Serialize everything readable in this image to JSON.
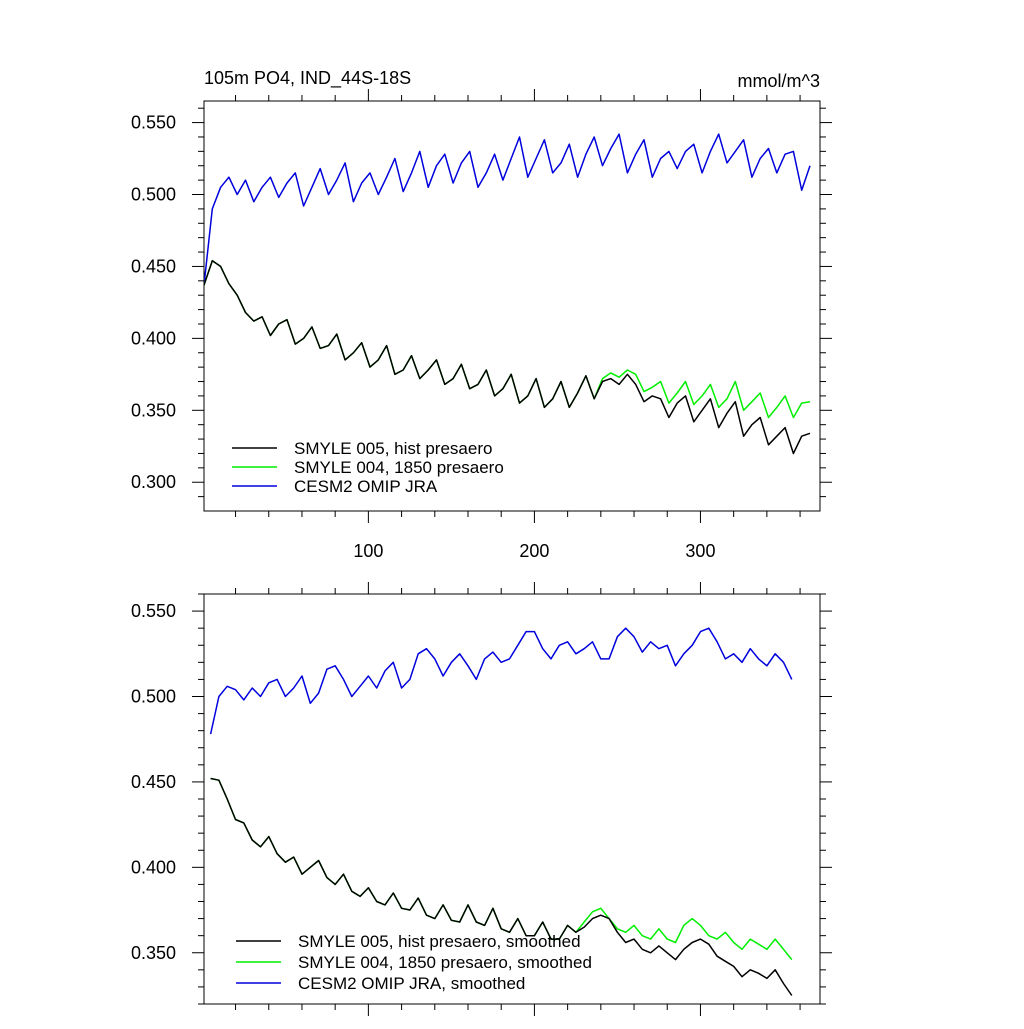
{
  "figure": {
    "title_left": "105m PO4, IND_44S-18S",
    "title_right": "mmol/m^3"
  },
  "chart_data": [
    {
      "type": "line",
      "panel": "top",
      "title": "105m PO4, IND_44S-18S",
      "units": "mmol/m^3",
      "xlabel": "",
      "ylabel": "",
      "xlim": [
        1,
        372
      ],
      "ylim": [
        0.28,
        0.565
      ],
      "xticks": [
        100,
        200,
        300
      ],
      "xtick_labels": [
        "100",
        "200",
        "300"
      ],
      "yticks": [
        0.3,
        0.35,
        0.4,
        0.45,
        0.5,
        0.55
      ],
      "ytick_labels": [
        "0.300",
        "0.350",
        "0.400",
        "0.450",
        "0.500",
        "0.550"
      ],
      "grid": false,
      "legend_position": "bottom-left",
      "series": [
        {
          "name": "SMYLE 005, hist presaero",
          "color": "#000000",
          "x_start": 1,
          "x_step": 5,
          "values": [
            0.437,
            0.454,
            0.45,
            0.438,
            0.43,
            0.418,
            0.412,
            0.415,
            0.402,
            0.41,
            0.413,
            0.396,
            0.4,
            0.408,
            0.393,
            0.395,
            0.403,
            0.385,
            0.39,
            0.397,
            0.38,
            0.385,
            0.395,
            0.375,
            0.378,
            0.388,
            0.372,
            0.378,
            0.385,
            0.368,
            0.372,
            0.382,
            0.365,
            0.368,
            0.378,
            0.36,
            0.365,
            0.375,
            0.355,
            0.36,
            0.372,
            0.352,
            0.358,
            0.37,
            0.352,
            0.362,
            0.374,
            0.358,
            0.37,
            0.372,
            0.368,
            0.375,
            0.368,
            0.356,
            0.36,
            0.358,
            0.345,
            0.355,
            0.36,
            0.342,
            0.35,
            0.358,
            0.338,
            0.348,
            0.356,
            0.332,
            0.34,
            0.345,
            0.326,
            0.332,
            0.338,
            0.32,
            0.332,
            0.334
          ]
        },
        {
          "name": "SMYLE 004, 1850 presaero",
          "color": "#00ee00",
          "x_start": 1,
          "x_step": 5,
          "values": [
            0.437,
            0.454,
            0.45,
            0.438,
            0.43,
            0.418,
            0.412,
            0.415,
            0.402,
            0.41,
            0.413,
            0.396,
            0.4,
            0.408,
            0.393,
            0.395,
            0.403,
            0.385,
            0.39,
            0.397,
            0.38,
            0.385,
            0.395,
            0.375,
            0.378,
            0.388,
            0.372,
            0.378,
            0.385,
            0.368,
            0.372,
            0.382,
            0.365,
            0.368,
            0.378,
            0.36,
            0.365,
            0.375,
            0.355,
            0.36,
            0.372,
            0.352,
            0.358,
            0.37,
            0.352,
            0.362,
            0.374,
            0.358,
            0.372,
            0.376,
            0.373,
            0.378,
            0.375,
            0.363,
            0.366,
            0.37,
            0.355,
            0.362,
            0.37,
            0.354,
            0.36,
            0.368,
            0.352,
            0.358,
            0.37,
            0.35,
            0.356,
            0.362,
            0.345,
            0.352,
            0.36,
            0.345,
            0.355,
            0.356
          ]
        },
        {
          "name": "CESM2 OMIP JRA",
          "color": "#0000dd",
          "x_start": 1,
          "x_step": 5,
          "values": [
            0.437,
            0.49,
            0.505,
            0.512,
            0.5,
            0.51,
            0.495,
            0.505,
            0.512,
            0.498,
            0.508,
            0.515,
            0.492,
            0.505,
            0.518,
            0.5,
            0.51,
            0.522,
            0.495,
            0.508,
            0.515,
            0.5,
            0.512,
            0.525,
            0.502,
            0.515,
            0.53,
            0.505,
            0.52,
            0.528,
            0.508,
            0.522,
            0.53,
            0.505,
            0.515,
            0.528,
            0.51,
            0.525,
            0.54,
            0.512,
            0.525,
            0.538,
            0.515,
            0.522,
            0.535,
            0.512,
            0.528,
            0.54,
            0.52,
            0.532,
            0.542,
            0.515,
            0.528,
            0.538,
            0.512,
            0.525,
            0.53,
            0.518,
            0.53,
            0.535,
            0.515,
            0.53,
            0.542,
            0.522,
            0.53,
            0.538,
            0.512,
            0.525,
            0.532,
            0.515,
            0.528,
            0.53,
            0.503,
            0.52
          ]
        }
      ]
    },
    {
      "type": "line",
      "panel": "bottom",
      "title": "",
      "xlabel": "",
      "ylabel": "",
      "xlim": [
        1,
        372
      ],
      "ylim": [
        0.32,
        0.56
      ],
      "xticks": [
        100,
        200,
        300
      ],
      "xtick_labels": [
        "",
        "",
        ""
      ],
      "yticks": [
        0.35,
        0.4,
        0.45,
        0.5,
        0.55
      ],
      "ytick_labels": [
        "0.350",
        "0.400",
        "0.450",
        "0.500",
        "0.550"
      ],
      "grid": false,
      "legend_position": "bottom-left",
      "series": [
        {
          "name": "SMYLE 005, hist presaero, smoothed",
          "color": "#000000",
          "x_start": 5,
          "x_step": 5,
          "values": [
            0.452,
            0.451,
            0.44,
            0.428,
            0.426,
            0.416,
            0.412,
            0.418,
            0.408,
            0.403,
            0.406,
            0.396,
            0.4,
            0.404,
            0.394,
            0.39,
            0.396,
            0.386,
            0.383,
            0.388,
            0.38,
            0.378,
            0.385,
            0.376,
            0.375,
            0.382,
            0.372,
            0.37,
            0.378,
            0.369,
            0.368,
            0.378,
            0.368,
            0.366,
            0.376,
            0.364,
            0.362,
            0.37,
            0.36,
            0.36,
            0.368,
            0.358,
            0.358,
            0.366,
            0.362,
            0.365,
            0.37,
            0.372,
            0.37,
            0.362,
            0.356,
            0.358,
            0.352,
            0.35,
            0.354,
            0.35,
            0.346,
            0.352,
            0.356,
            0.358,
            0.355,
            0.348,
            0.345,
            0.342,
            0.336,
            0.34,
            0.338,
            0.335,
            0.34,
            0.332,
            0.325
          ]
        },
        {
          "name": "SMYLE 004, 1850 presaero, smoothed",
          "color": "#00ee00",
          "x_start": 5,
          "x_step": 5,
          "values": [
            0.452,
            0.451,
            0.44,
            0.428,
            0.426,
            0.416,
            0.412,
            0.418,
            0.408,
            0.403,
            0.406,
            0.396,
            0.4,
            0.404,
            0.394,
            0.39,
            0.396,
            0.386,
            0.383,
            0.388,
            0.38,
            0.378,
            0.385,
            0.376,
            0.375,
            0.382,
            0.372,
            0.37,
            0.378,
            0.369,
            0.368,
            0.378,
            0.368,
            0.366,
            0.376,
            0.364,
            0.362,
            0.37,
            0.36,
            0.36,
            0.368,
            0.358,
            0.358,
            0.366,
            0.362,
            0.368,
            0.374,
            0.376,
            0.37,
            0.364,
            0.362,
            0.366,
            0.36,
            0.358,
            0.364,
            0.358,
            0.356,
            0.366,
            0.37,
            0.366,
            0.36,
            0.358,
            0.362,
            0.356,
            0.352,
            0.358,
            0.355,
            0.352,
            0.358,
            0.352,
            0.346
          ]
        },
        {
          "name": "CESM2 OMIP JRA, smoothed",
          "color": "#0000dd",
          "x_start": 5,
          "x_step": 5,
          "values": [
            0.478,
            0.5,
            0.506,
            0.504,
            0.498,
            0.505,
            0.5,
            0.508,
            0.51,
            0.5,
            0.505,
            0.512,
            0.496,
            0.502,
            0.516,
            0.518,
            0.51,
            0.5,
            0.506,
            0.512,
            0.505,
            0.515,
            0.52,
            0.505,
            0.51,
            0.525,
            0.528,
            0.522,
            0.512,
            0.52,
            0.525,
            0.518,
            0.51,
            0.522,
            0.526,
            0.52,
            0.522,
            0.53,
            0.538,
            0.538,
            0.528,
            0.522,
            0.53,
            0.532,
            0.525,
            0.528,
            0.532,
            0.522,
            0.522,
            0.535,
            0.54,
            0.535,
            0.526,
            0.532,
            0.528,
            0.53,
            0.518,
            0.525,
            0.53,
            0.538,
            0.54,
            0.532,
            0.522,
            0.525,
            0.52,
            0.528,
            0.522,
            0.518,
            0.525,
            0.52,
            0.51
          ]
        }
      ]
    }
  ]
}
